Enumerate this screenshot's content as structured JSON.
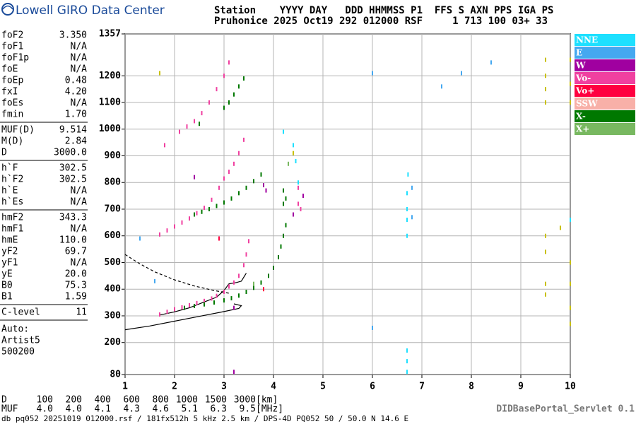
{
  "header": {
    "logo": "Lowell GIRO Data Center",
    "labels_line": "Station    YYYY DAY   DDD HHMMSS P1  FFS S AXN PPS IGA PS",
    "values_line": "Pruhonice 2025 Oct19 292 012000 RSF     1 713 100 03+ 33"
  },
  "parameter_groups": [
    [
      {
        "name": "foF2",
        "value": "3.350"
      },
      {
        "name": "foF1",
        "value": "N/A"
      },
      {
        "name": "foF1p",
        "value": "N/A"
      },
      {
        "name": "foE",
        "value": "N/A"
      },
      {
        "name": "foEp",
        "value": "0.48"
      },
      {
        "name": "fxI",
        "value": "4.20"
      },
      {
        "name": "foEs",
        "value": "N/A"
      },
      {
        "name": "fmin",
        "value": "1.70"
      }
    ],
    [
      {
        "name": "MUF(D)",
        "value": "9.514"
      },
      {
        "name": "M(D)",
        "value": "2.84"
      },
      {
        "name": "D",
        "value": "3000.0"
      }
    ],
    [
      {
        "name": "h`F",
        "value": "302.5"
      },
      {
        "name": "h`F2",
        "value": "302.5"
      },
      {
        "name": "h`E",
        "value": "N/A"
      },
      {
        "name": "h`Es",
        "value": "N/A"
      }
    ],
    [
      {
        "name": "hmF2",
        "value": "343.3"
      },
      {
        "name": "hmF1",
        "value": "N/A"
      },
      {
        "name": "hmE",
        "value": "110.0"
      },
      {
        "name": "yF2",
        "value": "69.7"
      },
      {
        "name": "yF1",
        "value": "N/A"
      },
      {
        "name": "yE",
        "value": "20.0"
      },
      {
        "name": "B0",
        "value": "75.3"
      },
      {
        "name": "B1",
        "value": "1.59"
      }
    ],
    [
      {
        "name": "C-level",
        "value": "11"
      }
    ]
  ],
  "auto": [
    "Auto:",
    "Artist5",
    "500200"
  ],
  "chart_data": {
    "type": "scatter",
    "xlim": [
      1,
      10
    ],
    "ylim": [
      80,
      1357
    ],
    "xticks": [
      1,
      2,
      3,
      4,
      5,
      6,
      7,
      8,
      9,
      10
    ],
    "yticks": [
      80,
      200,
      300,
      400,
      500,
      600,
      700,
      800,
      900,
      1000,
      1100,
      1200,
      1357
    ],
    "grid": true,
    "legend": "right",
    "series": [
      {
        "name": "NNE",
        "color": "#1ee0ff",
        "x": [
          4.45,
          4.5,
          4.4,
          6.7,
          6.7,
          6.7,
          6.7,
          6.72,
          6.7,
          6.7,
          6.7,
          10.0,
          4.2
        ],
        "values": [
          880,
          800,
          940,
          600,
          660,
          700,
          760,
          830,
          90,
          130,
          170,
          660,
          990
        ]
      },
      {
        "name": "E",
        "color": "#45a8f0",
        "x": [
          6.8,
          6.8,
          6.0,
          7.8,
          8.4,
          1.6,
          1.3,
          6.0,
          7.4
        ],
        "values": [
          780,
          670,
          1210,
          1210,
          1250,
          430,
          590,
          255,
          1160
        ]
      },
      {
        "name": "W",
        "color": "#a000a0",
        "x": [
          3.2,
          3.8,
          4.6,
          3.2,
          4.4,
          2.4,
          3.85
        ],
        "values": [
          330,
          790,
          750,
          90,
          680,
          820,
          770
        ]
      },
      {
        "name": "Vo-",
        "color": "#f040a0",
        "x": [
          1.7,
          1.85,
          2.0,
          2.15,
          2.3,
          2.45,
          2.6,
          2.75,
          2.85,
          3.0,
          3.1,
          3.2,
          3.3,
          3.4,
          3.45,
          3.5,
          1.7,
          1.85,
          2.0,
          2.15,
          2.3,
          2.45,
          2.6,
          2.75,
          2.9,
          3.0,
          3.1,
          3.2,
          3.3,
          3.4,
          1.8,
          2.1,
          2.25,
          2.4,
          2.55,
          2.7,
          2.85,
          3.0,
          3.1,
          4.5,
          4.5,
          4.55
        ],
        "values": [
          305,
          315,
          325,
          332,
          340,
          348,
          356,
          365,
          375,
          390,
          410,
          425,
          450,
          490,
          530,
          580,
          605,
          620,
          635,
          650,
          665,
          685,
          705,
          735,
          780,
          815,
          840,
          870,
          910,
          960,
          940,
          990,
          1010,
          1030,
          1060,
          1100,
          1150,
          1200,
          1250,
          720,
          780,
          700
        ]
      },
      {
        "name": "Vo+",
        "color": "#ff0040",
        "x": [
          3.8,
          2.9
        ],
        "values": [
          400,
          590
        ]
      },
      {
        "name": "SSW",
        "color": "#f8b0a8",
        "x": [],
        "values": []
      },
      {
        "name": "X-",
        "color": "#007800",
        "x": [
          2.2,
          2.4,
          2.6,
          2.8,
          3.0,
          3.15,
          3.3,
          3.45,
          3.6,
          3.75,
          3.9,
          4.0,
          4.1,
          4.15,
          4.2,
          4.25,
          2.4,
          2.55,
          2.7,
          2.85,
          3.0,
          3.15,
          3.3,
          3.45,
          3.6,
          3.75,
          3.0,
          3.1,
          3.2,
          3.3,
          3.4,
          4.2,
          4.2,
          4.25,
          2.5
        ],
        "values": [
          330,
          337,
          343,
          350,
          358,
          366,
          376,
          390,
          405,
          425,
          450,
          480,
          520,
          560,
          600,
          640,
          680,
          690,
          700,
          712,
          725,
          740,
          760,
          780,
          805,
          830,
          1080,
          1100,
          1130,
          1160,
          1190,
          770,
          720,
          740,
          1020
        ]
      },
      {
        "name": "X+",
        "color": "#78b860",
        "x": [
          3.6,
          4.3
        ],
        "values": [
          420,
          870
        ]
      }
    ],
    "other_points": {
      "color": "#c8c000",
      "x": [
        9.5,
        9.5,
        9.5,
        9.5,
        9.5,
        9.5,
        9.5,
        9.5,
        10.0,
        10.0,
        10.0,
        10.0,
        10.0,
        10.0,
        10.0,
        9.8,
        1.7,
        4.4
      ],
      "values": [
        1260,
        1200,
        1150,
        1100,
        600,
        540,
        420,
        380,
        1260,
        1170,
        1100,
        500,
        420,
        330,
        270,
        630,
        1210,
        910
      ]
    },
    "profile_lines": [
      {
        "color": "#000000",
        "dashed": false,
        "x": [
          1.0,
          1.5,
          2.0,
          2.5,
          3.0,
          3.3,
          3.35,
          3.2
        ],
        "values": [
          248,
          262,
          280,
          298,
          316,
          328,
          338,
          345
        ]
      },
      {
        "color": "#000000",
        "dashed": false,
        "x": [
          1.7,
          2.0,
          2.3,
          2.6,
          2.85,
          3.0,
          3.1,
          3.25,
          3.35,
          3.4,
          3.45
        ],
        "values": [
          303,
          315,
          330,
          352,
          370,
          395,
          420,
          425,
          430,
          445,
          460
        ]
      },
      {
        "color": "#000000",
        "dashed": true,
        "x": [
          1.0,
          1.3,
          1.6,
          2.0,
          2.4,
          2.8,
          3.1
        ],
        "values": [
          530,
          495,
          465,
          435,
          412,
          395,
          385
        ]
      }
    ]
  },
  "muf_table": {
    "d_label": "D",
    "d": [
      "100",
      "200",
      "400",
      "600",
      "800",
      "1000",
      "1500",
      "3000"
    ],
    "d_unit": "[km]",
    "muf_label": "MUF",
    "muf": [
      "4.0",
      "4.0",
      "4.1",
      "4.3",
      "4.6",
      "5.1",
      "6.3",
      "9.5"
    ],
    "muf_unit": "[MHz]"
  },
  "footer": "db pq052 20251019 012000.rsf / 181fx512h 5 kHz 2.5 km / DPS-4D PQ052 50 / 50.0 N 14.6 E",
  "servlet": "DIDBasePortal_Servlet 0.1"
}
